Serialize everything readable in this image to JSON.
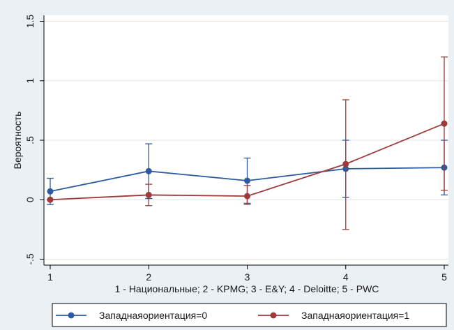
{
  "chart_data": {
    "type": "line",
    "ylabel": "Вероятность",
    "xlabel": "1 - Национальные; 2 - KPMG; 3 - E&Y; 4 - Deloitte; 5 - PWC",
    "x": [
      1,
      2,
      3,
      4,
      5
    ],
    "x_tick_labels": [
      "1",
      "2",
      "3",
      "4",
      "5"
    ],
    "xlim": [
      1,
      5
    ],
    "ylim": [
      -0.55,
      1.55
    ],
    "y_ticks": [
      -0.5,
      0,
      0.5,
      1,
      1.5
    ],
    "y_tick_labels": [
      "-.5",
      "0",
      ".5",
      "1",
      "1.5"
    ],
    "grid": "horizontal",
    "legend_position": "bottom",
    "error_bars": true,
    "series": [
      {
        "name": "Западнаяориентация=0",
        "color": "#2c5aa0",
        "values": [
          0.07,
          0.24,
          0.16,
          0.26,
          0.27
        ],
        "ci_low": [
          -0.04,
          0.01,
          -0.03,
          0.02,
          0.04
        ],
        "ci_high": [
          0.18,
          0.47,
          0.35,
          0.5,
          0.5
        ]
      },
      {
        "name": "Западнаяориентация=1",
        "color": "#9e3a3a",
        "values": [
          0.0,
          0.04,
          0.03,
          0.3,
          0.64
        ],
        "ci_low": [
          0.0,
          -0.05,
          -0.04,
          -0.25,
          0.08
        ],
        "ci_high": [
          0.0,
          0.13,
          0.12,
          0.84,
          1.2
        ]
      }
    ]
  }
}
